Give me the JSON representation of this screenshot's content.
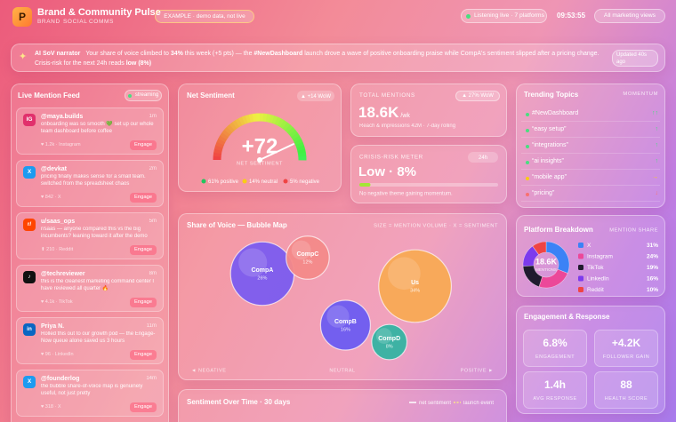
{
  "header": {
    "logo": "P",
    "title": "Brand & Community Pulse",
    "tabs": [
      "BRAND",
      "SOCIAL",
      "COMMS"
    ],
    "badge": "EXAMPLE · demo data, not live",
    "status": "Listening live · 7 platforms",
    "time": "09:53:55",
    "button": "All marketing views"
  },
  "narrator": {
    "label": "AI SoV narrator",
    "text": [
      "Your share of voice climbed to ",
      "34%",
      " this week (+5 pts) — the ",
      "#NewDashboard",
      " launch drove a wave of positive onboarding praise while CompA's sentiment slipped after a pricing change. Crisis-risk for the next 24h reads ",
      "low (8%)"
    ],
    "updated": "Updated 40s ago"
  },
  "feed": {
    "title": "Live Mention Feed",
    "badge": "streaming",
    "action": "Engage",
    "items": [
      {
        "icon": "IG",
        "color": "#e1306c",
        "handle": "@maya.builds",
        "time": "1m",
        "text": "onboarding was so smooth 💚 set up our whole team dashboard before coffee",
        "meta": "♥ 1.2k · Instagram"
      },
      {
        "icon": "X",
        "color": "#1d9bf0",
        "handle": "@devkat",
        "time": "2m",
        "text": "pricing finally makes sense for a small team. switched from the spreadsheet chaos",
        "meta": "♥ 842 · X"
      },
      {
        "icon": "r/",
        "color": "#ff4500",
        "handle": "u/saas_ops",
        "time": "5m",
        "text": "r/saas — anyone compared this vs the big incumbents? leaning toward it after the demo",
        "meta": "⬆ 210 · Reddit"
      },
      {
        "icon": "♪",
        "color": "#111111",
        "handle": "@techreviewer",
        "time": "8m",
        "text": "this is the cleanest marketing command center I have reviewed all quarter 🔥",
        "meta": "♥ 4.1k · TikTok"
      },
      {
        "icon": "in",
        "color": "#0a66c2",
        "handle": "Priya N.",
        "time": "11m",
        "text": "Rolled this out to our growth pod — the Engage-Now queue alone saved us 3 hours",
        "meta": "♥ 96 · LinkedIn"
      },
      {
        "icon": "X",
        "color": "#1d9bf0",
        "handle": "@founderlog",
        "time": "14m",
        "text": "the bubble share-of-voice map is genuinely useful, not just pretty",
        "meta": "♥ 318 · X"
      }
    ]
  },
  "mentions": {
    "label": "TOTAL MENTIONS",
    "badge": "▲ 27% WoW",
    "value": "18.6K",
    "unit": "/wk",
    "note": "Reach & impressions 42M · 7-day rolling"
  },
  "topics": {
    "title": "Trending Topics",
    "header": "MOMENTUM",
    "items": [
      {
        "name": "#NewDashboard",
        "trend": "↑↑",
        "color": "#4ade80"
      },
      {
        "name": "“easy setup”",
        "trend": "↑",
        "color": "#4ade80"
      },
      {
        "name": "“integrations”",
        "trend": "↑",
        "color": "#4ade80"
      },
      {
        "name": "“ai insights”",
        "trend": "↑",
        "color": "#4ade80"
      },
      {
        "name": "“mobile app”",
        "trend": "→",
        "color": "#facc15"
      },
      {
        "name": "“pricing”",
        "trend": "↓",
        "color": "#f87171"
      }
    ]
  },
  "engagement": {
    "title": "Engagement & Response",
    "tiles": [
      {
        "value": "6.8%",
        "label": "ENGAGEMENT"
      },
      {
        "value": "+4.2K",
        "label": "FOLLOWER GAIN"
      },
      {
        "value": "1.4h",
        "label": "AVG RESPONSE"
      },
      {
        "value": "88",
        "label": "HEALTH SCORE"
      }
    ]
  },
  "chart_data": [
    {
      "type": "gauge",
      "title": "Net Sentiment",
      "badge": "▲ +14 WoW",
      "value": 72,
      "value_label": "+72",
      "caption": "NET SENTIMENT",
      "ylim": [
        -100,
        100
      ],
      "legend": [
        {
          "name": "61% positive",
          "color": "#22c55e"
        },
        {
          "name": "14% neutral",
          "color": "#facc15"
        },
        {
          "name": "5% negative",
          "color": "#ef4444"
        }
      ]
    },
    {
      "type": "meter",
      "title": "CRISIS-RISK METER",
      "badge": "24h",
      "value": 8,
      "value_label": "Low · 8%",
      "xlim": [
        0,
        100
      ],
      "color": "#a3e635",
      "note": "No negative theme gaining momentum."
    },
    {
      "type": "bubble",
      "title": "Share of Voice — Bubble Map",
      "subtitle": "SIZE = MENTION VOLUME · X = SENTIMENT",
      "axis_labels": [
        "◄ NEGATIVE",
        "NEUTRAL",
        "POSITIVE ►"
      ],
      "xlim": [
        -1,
        1
      ],
      "categories": [
        "CompA",
        "CompC",
        "CompB",
        "CompD",
        "Us"
      ],
      "x": [
        -0.53,
        -0.23,
        0.02,
        0.31,
        0.48
      ],
      "values": [
        26,
        12,
        16,
        8,
        34
      ],
      "value_labels": [
        "26%",
        "12%",
        "16%",
        "8%",
        "34%"
      ],
      "colors": [
        "#7c5cf0",
        "#f58a8a",
        "#6d5cf2",
        "#35b3a3",
        "#f9aa55"
      ]
    },
    {
      "type": "pie",
      "title": "Platform Breakdown",
      "header": "MENTION SHARE",
      "center_value": "18.6K",
      "center_label": "MENTIONS",
      "categories": [
        "X",
        "Instagram",
        "TikTok",
        "LinkedIn",
        "Reddit"
      ],
      "values": [
        31,
        24,
        19,
        16,
        10
      ],
      "value_labels": [
        "31%",
        "24%",
        "19%",
        "16%",
        "10%"
      ],
      "colors": [
        "#3b82f6",
        "#ec4899",
        "#1f1b2e",
        "#7c3aed",
        "#ef4444"
      ]
    },
    {
      "type": "line",
      "title": "Sentiment Over Time · 30 days",
      "series": [
        {
          "name": "net sentiment",
          "color": "#ffffff"
        },
        {
          "name": "launch event",
          "color": "#fde68a"
        }
      ]
    }
  ]
}
